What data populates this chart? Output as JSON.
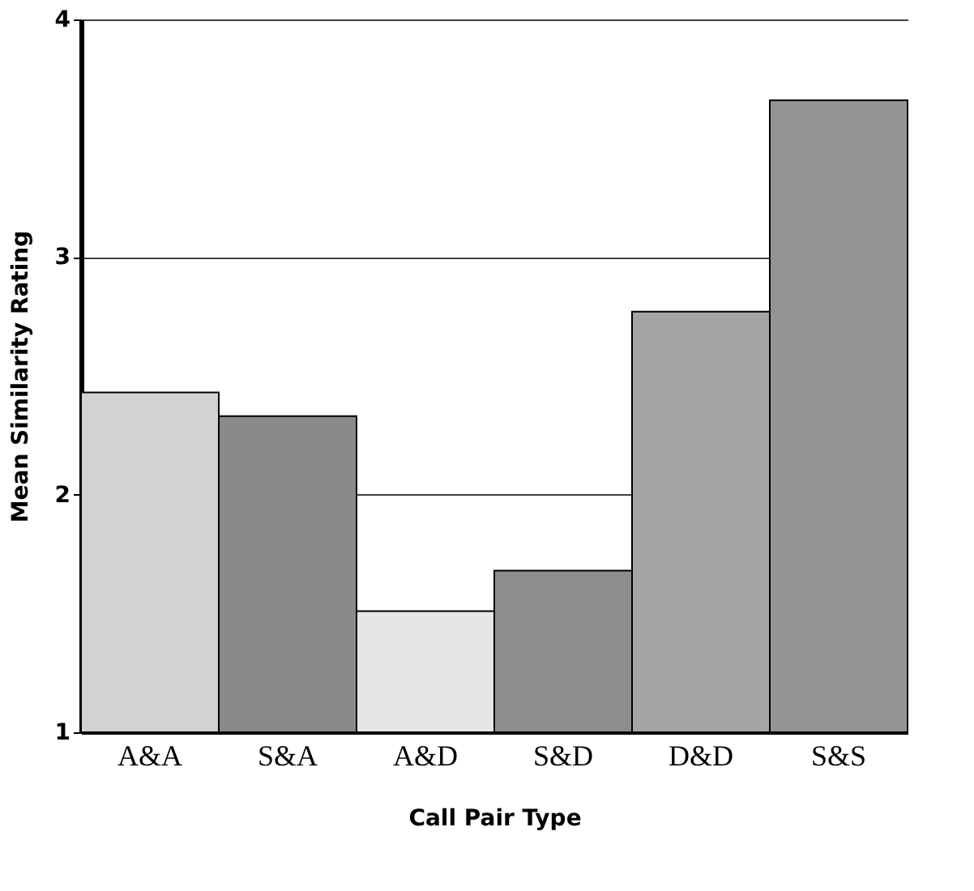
{
  "chart_data": {
    "type": "bar",
    "xlabel": "Call Pair Type",
    "ylabel": "Mean Similarity Rating",
    "categories": [
      "A&A",
      "S&A",
      "A&D",
      "S&D",
      "D&D",
      "S&S"
    ],
    "values": [
      2.43,
      2.33,
      1.51,
      1.68,
      2.77,
      3.66
    ],
    "colors": [
      "#d2d2d2",
      "#8a8a8a",
      "#e6e6e6",
      "#8e8e8e",
      "#a5a5a5",
      "#949494"
    ],
    "ylim": [
      1,
      4
    ],
    "yticks": [
      1,
      2,
      3,
      4
    ],
    "grid": "y"
  }
}
